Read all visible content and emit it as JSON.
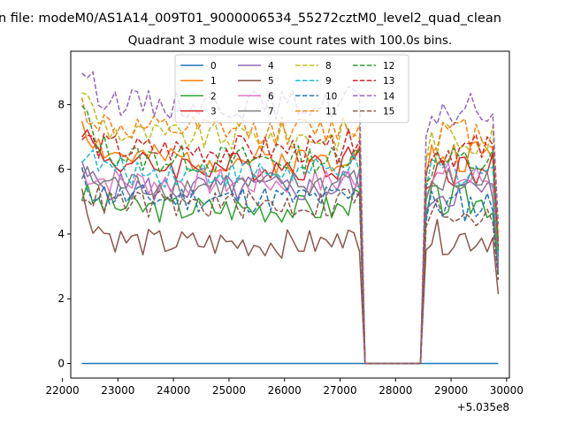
{
  "chart_data": {
    "type": "line",
    "suptitle": "n file: modeM0/AS1A14_009T01_9000006534_55272cztM0_level2_quad_clean",
    "title": "Quadrant 3 module wise count rates with 100.0s bins.",
    "xlabel": "",
    "ylabel": "",
    "x_offset_label": "+5.035e8",
    "xlim": [
      22150,
      30050
    ],
    "ylim": [
      -0.45,
      9.65
    ],
    "xticks": [
      22000,
      23000,
      24000,
      25000,
      26000,
      27000,
      28000,
      29000,
      30000
    ],
    "xtick_labels": [
      "22000",
      "23000",
      "24000",
      "25000",
      "26000",
      "27000",
      "28000",
      "29000",
      "30000"
    ],
    "yticks": [
      0,
      2,
      4,
      6,
      8
    ],
    "ytick_labels": [
      "0",
      "2",
      "4",
      "6",
      "8"
    ],
    "legend_location": "upper center",
    "legend_columns": 4,
    "x_range": {
      "start": 22350,
      "step": 100,
      "gap_start": 27450,
      "gap_end": 28450,
      "end": 29850
    },
    "series": [
      {
        "name": "0",
        "color": "#1f77b4",
        "dash": "solid",
        "level": 0.0,
        "initial": 0.0,
        "late_level": 0.0,
        "seed": 1
      },
      {
        "name": "1",
        "color": "#ff7f0e",
        "dash": "solid",
        "level": 6.3,
        "initial": 7.6,
        "late_level": 6.4,
        "seed": 2
      },
      {
        "name": "2",
        "color": "#2ca02c",
        "dash": "solid",
        "level": 4.8,
        "initial": 5.3,
        "late_level": 5.0,
        "seed": 3
      },
      {
        "name": "3",
        "color": "#d62728",
        "dash": "solid",
        "level": 6.1,
        "initial": 7.4,
        "late_level": 6.0,
        "seed": 4
      },
      {
        "name": "4",
        "color": "#9467bd",
        "dash": "solid",
        "level": 5.4,
        "initial": 5.9,
        "late_level": 5.3,
        "seed": 5
      },
      {
        "name": "5",
        "color": "#8c564b",
        "dash": "solid",
        "level": 3.7,
        "initial": 5.2,
        "late_level": 3.9,
        "seed": 6
      },
      {
        "name": "6",
        "color": "#e377c2",
        "dash": "solid",
        "level": 5.6,
        "initial": 6.0,
        "late_level": 5.7,
        "seed": 7
      },
      {
        "name": "7",
        "color": "#7f7f7f",
        "dash": "solid",
        "level": 5.5,
        "initial": 5.8,
        "late_level": 5.6,
        "seed": 8
      },
      {
        "name": "8",
        "color": "#bcbd22",
        "dash": "dashed",
        "level": 7.0,
        "initial": 8.6,
        "late_level": 7.0,
        "seed": 9
      },
      {
        "name": "9",
        "color": "#17becf",
        "dash": "dashed",
        "level": 5.9,
        "initial": 6.6,
        "late_level": 6.0,
        "seed": 10
      },
      {
        "name": "10",
        "color": "#1f77b4",
        "dash": "dashed",
        "level": 5.1,
        "initial": 5.7,
        "late_level": 4.9,
        "seed": 11
      },
      {
        "name": "11",
        "color": "#ff7f0e",
        "dash": "dashed",
        "level": 7.2,
        "initial": 8.0,
        "late_level": 7.1,
        "seed": 12
      },
      {
        "name": "12",
        "color": "#2ca02c",
        "dash": "dashed",
        "level": 6.3,
        "initial": 7.9,
        "late_level": 6.2,
        "seed": 13
      },
      {
        "name": "13",
        "color": "#d62728",
        "dash": "dashed",
        "level": 6.6,
        "initial": 7.0,
        "late_level": 6.6,
        "seed": 14
      },
      {
        "name": "14",
        "color": "#9467bd",
        "dash": "dashed",
        "level": 8.0,
        "initial": 9.2,
        "late_level": 7.8,
        "seed": 15
      },
      {
        "name": "15",
        "color": "#8c564b",
        "dash": "dashed",
        "level": 4.9,
        "initial": 5.4,
        "late_level": 4.7,
        "seed": 16
      }
    ]
  }
}
